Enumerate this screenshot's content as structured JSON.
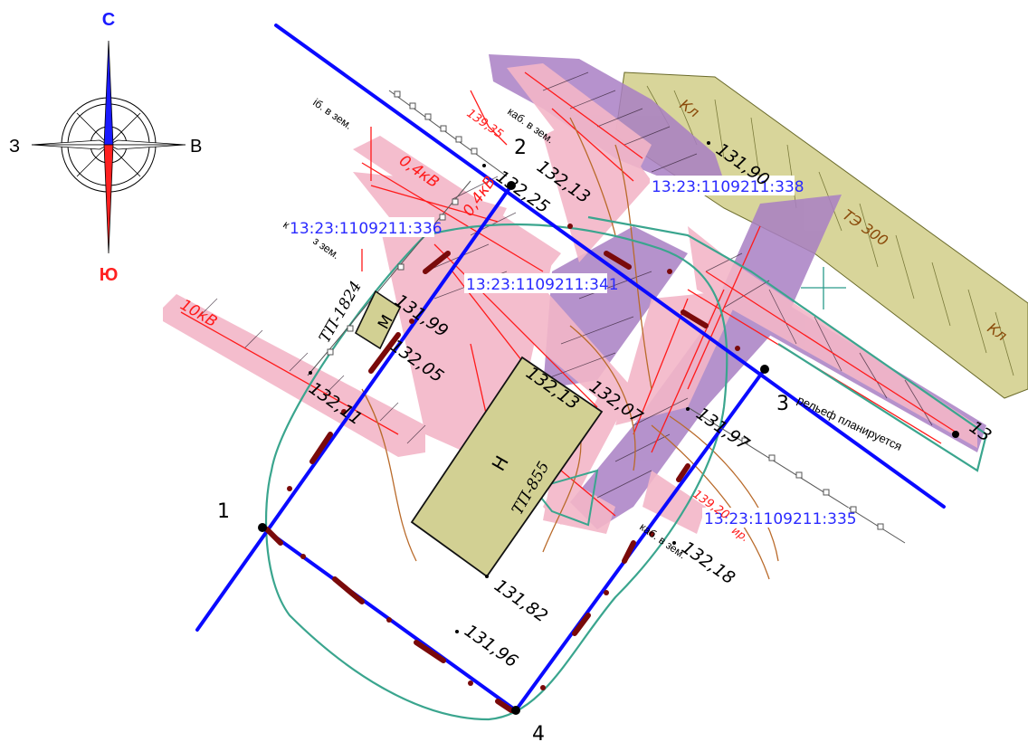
{
  "compass": {
    "north": "С",
    "south": "Ю",
    "west": "З",
    "east": "В",
    "north_color": "#1a1aff",
    "south_color": "#ff2020"
  },
  "cadastral": [
    {
      "id": "13:23:1109211:338"
    },
    {
      "id": "13:23:1109211:336"
    },
    {
      "id": "13:23:1109211:341"
    },
    {
      "id": "13:23:1109211:335"
    }
  ],
  "corners": {
    "c1": "1",
    "c2": "2",
    "c3": "3",
    "c4": "4"
  },
  "elevations": {
    "e13213_top": "132,13",
    "e13225": "132,25",
    "e13190": "131,90",
    "e13199": "131,99",
    "e13205": "132,05",
    "e13211": "132,11",
    "e13213_b": "132,13",
    "e13207": "132,07",
    "e13197": "131,97",
    "e13218": "132,18",
    "e13182": "131,82",
    "e13196": "131,96",
    "e13_right": "13",
    "e13935": "139,35",
    "e13920": "139,20"
  },
  "labels": {
    "kab_top": "каб. в зем.",
    "kab_left1": "іб. в зем.",
    "kab_left2": "к",
    "kab_left3": "з зем.",
    "kab_right": "каб. в зем.",
    "v04a": "0,4кВ",
    "v04b": "0,4кВ",
    "v10": "10кВ",
    "tp1824": "ТП-1824",
    "tp855": "ТП-855",
    "M": "М",
    "N": "Н",
    "relief": "рельеф планируется",
    "kl1": "Кл",
    "kl2": "Кл",
    "te300": "ТЭ 300",
    "frag_r": "ир."
  },
  "colors": {
    "boundary": "#0a0aff",
    "buffer": "#3aa58e",
    "heat": "#d8d59a",
    "pink": "#f3b6c8",
    "purple": "#a97fc4",
    "dash": "#7a0a0a",
    "red": "#ff1a1a"
  }
}
